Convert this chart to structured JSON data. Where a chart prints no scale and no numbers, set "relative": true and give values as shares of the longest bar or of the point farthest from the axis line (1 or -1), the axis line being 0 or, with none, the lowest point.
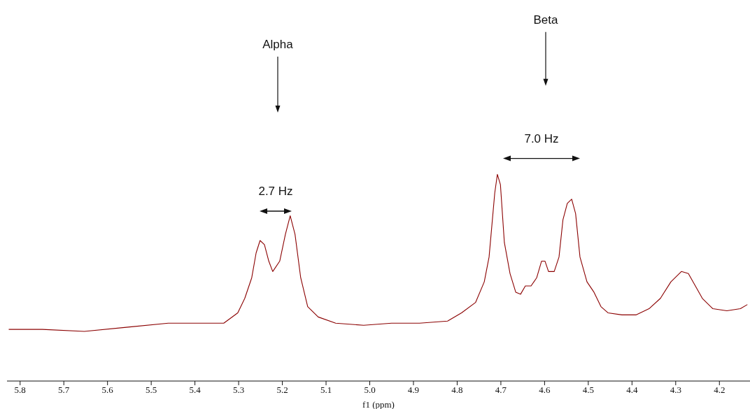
{
  "chart_data": {
    "type": "line",
    "relative": true,
    "xlabel": "f1 (ppm)",
    "xlim": [
      5.83,
      4.13
    ],
    "xticks": [
      5.8,
      5.7,
      5.6,
      5.5,
      5.4,
      5.3,
      5.2,
      5.1,
      {
        "value": 5,
        "label": "5.0"
      },
      4.9,
      4.8,
      4.7,
      4.6,
      4.5,
      4.4,
      4.3,
      4.2
    ],
    "marker": "none",
    "line_style": "solid",
    "annotations": [
      "Alpha",
      "Beta",
      "2.7 Hz",
      "7.0 Hz"
    ],
    "series": [
      {
        "color": "#8b0000",
        "x": [
          5.826,
          5.749,
          5.653,
          5.557,
          5.461,
          5.365,
          5.334,
          5.302,
          5.286,
          5.27,
          5.26,
          5.251,
          5.241,
          5.231,
          5.222,
          5.206,
          5.193,
          5.182,
          5.171,
          5.158,
          5.142,
          5.118,
          5.078,
          5.014,
          4.95,
          4.886,
          4.822,
          4.79,
          4.758,
          4.738,
          4.727,
          4.714,
          4.708,
          4.701,
          4.692,
          4.679,
          4.666,
          4.655,
          4.644,
          4.631,
          4.618,
          4.607,
          4.599,
          4.591,
          4.578,
          4.567,
          4.558,
          4.548,
          4.538,
          4.529,
          4.519,
          4.503,
          4.487,
          4.471,
          4.455,
          4.423,
          4.391,
          4.361,
          4.335,
          4.311,
          4.287,
          4.271,
          4.255,
          4.239,
          4.215,
          4.183,
          4.152,
          4.136
        ],
        "values": [
          0.25,
          0.25,
          0.24,
          0.26,
          0.28,
          0.28,
          0.28,
          0.33,
          0.4,
          0.5,
          0.62,
          0.68,
          0.66,
          0.58,
          0.53,
          0.58,
          0.71,
          0.8,
          0.71,
          0.5,
          0.36,
          0.31,
          0.28,
          0.27,
          0.28,
          0.28,
          0.29,
          0.33,
          0.38,
          0.48,
          0.6,
          0.91,
          1,
          0.95,
          0.67,
          0.52,
          0.43,
          0.42,
          0.46,
          0.46,
          0.5,
          0.58,
          0.58,
          0.53,
          0.53,
          0.6,
          0.78,
          0.86,
          0.88,
          0.81,
          0.6,
          0.48,
          0.43,
          0.36,
          0.33,
          0.32,
          0.32,
          0.35,
          0.4,
          0.48,
          0.53,
          0.52,
          0.46,
          0.4,
          0.35,
          0.34,
          0.35,
          0.37
        ]
      }
    ]
  }
}
